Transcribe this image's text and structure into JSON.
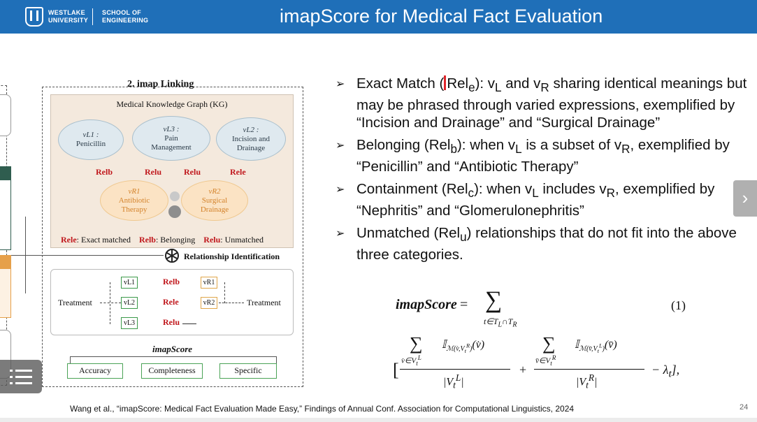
{
  "header": {
    "university_line1": "WESTLAKE",
    "university_line2": "UNIVERSITY",
    "school_line1": "SCHOOL OF",
    "school_line2": "ENGINEERING",
    "title": "imapScore for Medical Fact Evaluation",
    "bar_color": "#1f6fb8"
  },
  "figure": {
    "section_title": "2. imap Linking",
    "kg_title": "Medical Knowledge Graph (KG)",
    "nodes_left": [
      {
        "label": "vL1 :",
        "name": "Penicillin"
      },
      {
        "label": "vL3 :",
        "name": "Pain Management"
      },
      {
        "label": "vL2 :",
        "name": "Incision and Drainage"
      }
    ],
    "nodes_right": [
      {
        "label": "vR1",
        "name": "Antibiotic Therapy"
      },
      {
        "label": "vR2",
        "name": "Surgical Drainage"
      }
    ],
    "relations": [
      "Relb",
      "Relu",
      "Relu",
      "Rele"
    ],
    "legend": {
      "e_key": "Rele",
      "e_text": ": Exact matched",
      "b_key": "Relb",
      "b_text": ": Belonging",
      "u_key": "Relu",
      "u_text": ": Unmatched"
    },
    "relationship_identification": "Relationship Identification",
    "treatment_left": "Treatment",
    "treatment_right": "Treatment",
    "mini_rows": [
      {
        "left": "vL1",
        "rel": "Relb",
        "right": "vR1"
      },
      {
        "left": "vL2",
        "rel": "Rele",
        "right": "vR2"
      },
      {
        "left": "vL3",
        "rel": "Relu",
        "right": ""
      }
    ],
    "score_label": "imapScore",
    "metrics": [
      "Accuracy",
      "Completeness",
      "Specific"
    ]
  },
  "bullets": [
    {
      "pre": "Exact Match (Rel",
      "sub": "e",
      "post": "): v",
      "sub2": "L",
      "post2": " and v",
      "sub3": "R",
      "post3": " sharing identical meanings but may be phrased through varied expressions, exemplified by “Incision and Drainage” and “Surgical Drainage”"
    },
    {
      "pre": "Belonging (Rel",
      "sub": "b",
      "post": "): when v",
      "sub2": "L",
      "post2": " is a subset of v",
      "sub3": "R",
      "post3": ", exemplified by “Penicillin” and “Antibiotic Therapy”"
    },
    {
      "pre": "Containment (Rel",
      "sub": "c",
      "post": "): when v",
      "sub2": "L",
      "post2": " includes v",
      "sub3": "R",
      "post3": ", exemplified by “Nephritis” and “Glomerulonephritis”"
    },
    {
      "pre": "Unmatched (Rel",
      "sub": "u",
      "post": ") relationships that do not fit into the above three categories.",
      "sub2": "",
      "post2": "",
      "sub3": "",
      "post3": ""
    }
  ],
  "equation": {
    "lhs": "imapScore",
    "eq_number": "(1)"
  },
  "footer": {
    "citation": "Wang et al., “imapScore: Medical Fact Evaluation Made Easy,” Findings of Annual Conf. Association for Computational Linguistics, 2024",
    "page_number": "24"
  },
  "nav": {
    "next_icon": "chevron-right-icon",
    "menu_icon": "menu-list-icon"
  }
}
